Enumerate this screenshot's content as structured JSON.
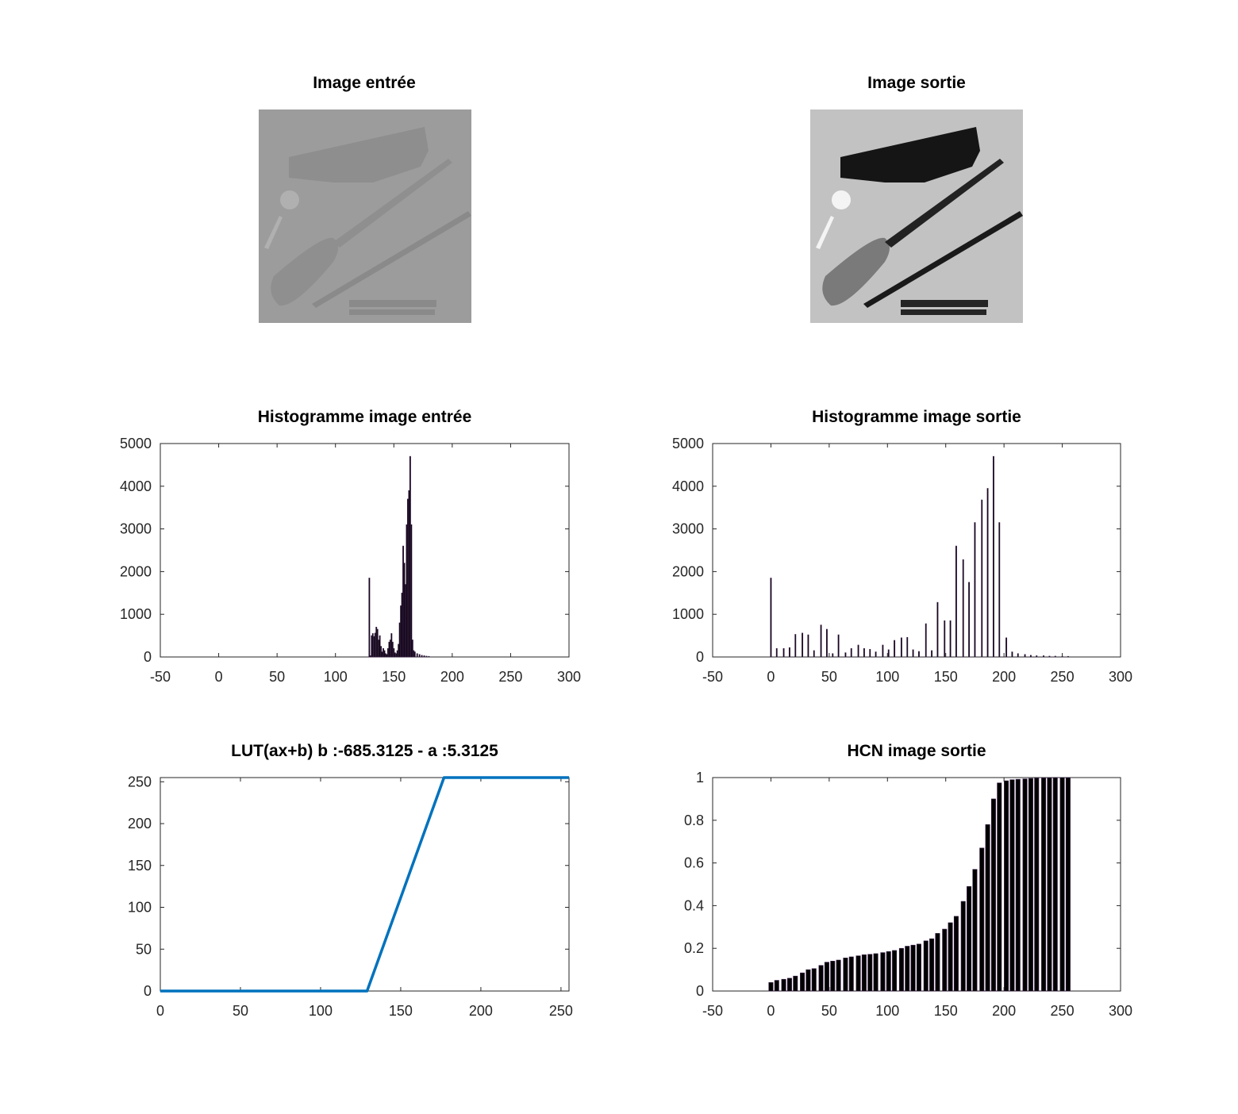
{
  "colors": {
    "bar": "#000000",
    "bar_edge": "#3b1e4a",
    "line": "#0072bd",
    "axis": "#262626"
  },
  "images": {
    "input": {
      "title": "Image entrée",
      "scene_tone": "low-contrast"
    },
    "output": {
      "title": "Image sortie",
      "scene_tone": "high-contrast"
    }
  },
  "chart_data": [
    {
      "type": "bar",
      "title": "Histogramme image entrée",
      "xlabel": "",
      "ylabel": "",
      "xlim": [
        -50,
        300
      ],
      "ylim": [
        0,
        5000
      ],
      "xticks": [
        "-50",
        "0",
        "50",
        "100",
        "150",
        "200",
        "250",
        "300"
      ],
      "yticks": [
        "0",
        "1000",
        "2000",
        "3000",
        "4000",
        "5000"
      ],
      "x": [
        129,
        130,
        131,
        132,
        133,
        134,
        135,
        136,
        137,
        138,
        139,
        140,
        141,
        142,
        143,
        144,
        145,
        146,
        147,
        148,
        149,
        150,
        151,
        152,
        153,
        154,
        155,
        156,
        157,
        158,
        159,
        160,
        161,
        162,
        163,
        164,
        165,
        166,
        167,
        168,
        170,
        172,
        174,
        176,
        178,
        180
      ],
      "values": [
        1850,
        30,
        500,
        550,
        480,
        560,
        700,
        650,
        400,
        500,
        250,
        120,
        200,
        150,
        80,
        60,
        200,
        350,
        400,
        550,
        350,
        200,
        100,
        80,
        150,
        300,
        800,
        1200,
        1500,
        2600,
        2200,
        1700,
        3100,
        3700,
        3900,
        4700,
        3100,
        400,
        150,
        120,
        80,
        60,
        40,
        30,
        20,
        15
      ]
    },
    {
      "type": "bar",
      "title": "Histogramme image sortie",
      "xlabel": "",
      "ylabel": "",
      "xlim": [
        -50,
        300
      ],
      "ylim": [
        0,
        5000
      ],
      "xticks": [
        "-50",
        "0",
        "50",
        "100",
        "150",
        "200",
        "250",
        "300"
      ],
      "yticks": [
        "0",
        "1000",
        "2000",
        "3000",
        "4000",
        "5000"
      ],
      "x": [
        0,
        5,
        11,
        16,
        21,
        27,
        32,
        37,
        43,
        48,
        53,
        58,
        64,
        69,
        75,
        80,
        85,
        90,
        96,
        101,
        106,
        112,
        117,
        122,
        127,
        133,
        138,
        143,
        149,
        154,
        159,
        165,
        170,
        175,
        181,
        186,
        191,
        196,
        202,
        207,
        212,
        218,
        223,
        228,
        234,
        239,
        244,
        250,
        255
      ],
      "values": [
        1850,
        200,
        200,
        220,
        530,
        560,
        520,
        150,
        750,
        650,
        80,
        520,
        100,
        200,
        280,
        200,
        180,
        120,
        280,
        170,
        390,
        450,
        460,
        170,
        130,
        780,
        150,
        1280,
        850,
        850,
        2600,
        2280,
        1750,
        3150,
        3680,
        3950,
        4700,
        3150,
        450,
        120,
        80,
        60,
        40,
        30,
        30,
        20,
        20,
        15,
        15
      ]
    },
    {
      "type": "line",
      "title": "LUT(ax+b) b :-685.3125 - a :5.3125",
      "xlabel": "",
      "ylabel": "",
      "xlim": [
        0,
        255
      ],
      "ylim": [
        0,
        255
      ],
      "xticks": [
        "0",
        "50",
        "100",
        "150",
        "200",
        "250"
      ],
      "yticks": [
        "0",
        "50",
        "100",
        "150",
        "200",
        "250"
      ],
      "series": [
        {
          "x": [
            0,
            129,
            177,
            255
          ],
          "y": [
            0,
            0,
            255,
            255
          ]
        }
      ]
    },
    {
      "type": "bar",
      "title": "HCN image sortie",
      "xlabel": "",
      "ylabel": "",
      "xlim": [
        -50,
        300
      ],
      "ylim": [
        0,
        1
      ],
      "xticks": [
        "-50",
        "0",
        "50",
        "100",
        "150",
        "200",
        "250",
        "300"
      ],
      "yticks": [
        "0",
        "0.2",
        "0.4",
        "0.6",
        "0.8",
        "1"
      ],
      "x": [
        0,
        5,
        11,
        16,
        21,
        27,
        32,
        37,
        43,
        48,
        53,
        58,
        64,
        69,
        75,
        80,
        85,
        90,
        96,
        101,
        106,
        112,
        117,
        122,
        127,
        133,
        138,
        143,
        149,
        154,
        159,
        165,
        170,
        175,
        181,
        186,
        191,
        196,
        202,
        207,
        212,
        218,
        223,
        228,
        234,
        239,
        244,
        250,
        255
      ],
      "values": [
        0.04,
        0.05,
        0.055,
        0.06,
        0.07,
        0.085,
        0.1,
        0.105,
        0.12,
        0.135,
        0.14,
        0.145,
        0.155,
        0.16,
        0.165,
        0.17,
        0.172,
        0.175,
        0.18,
        0.185,
        0.19,
        0.2,
        0.21,
        0.215,
        0.22,
        0.235,
        0.245,
        0.27,
        0.29,
        0.32,
        0.35,
        0.42,
        0.49,
        0.57,
        0.67,
        0.78,
        0.9,
        0.975,
        0.985,
        0.99,
        0.992,
        0.994,
        0.996,
        0.997,
        0.998,
        0.999,
        0.9995,
        1,
        1
      ]
    }
  ]
}
